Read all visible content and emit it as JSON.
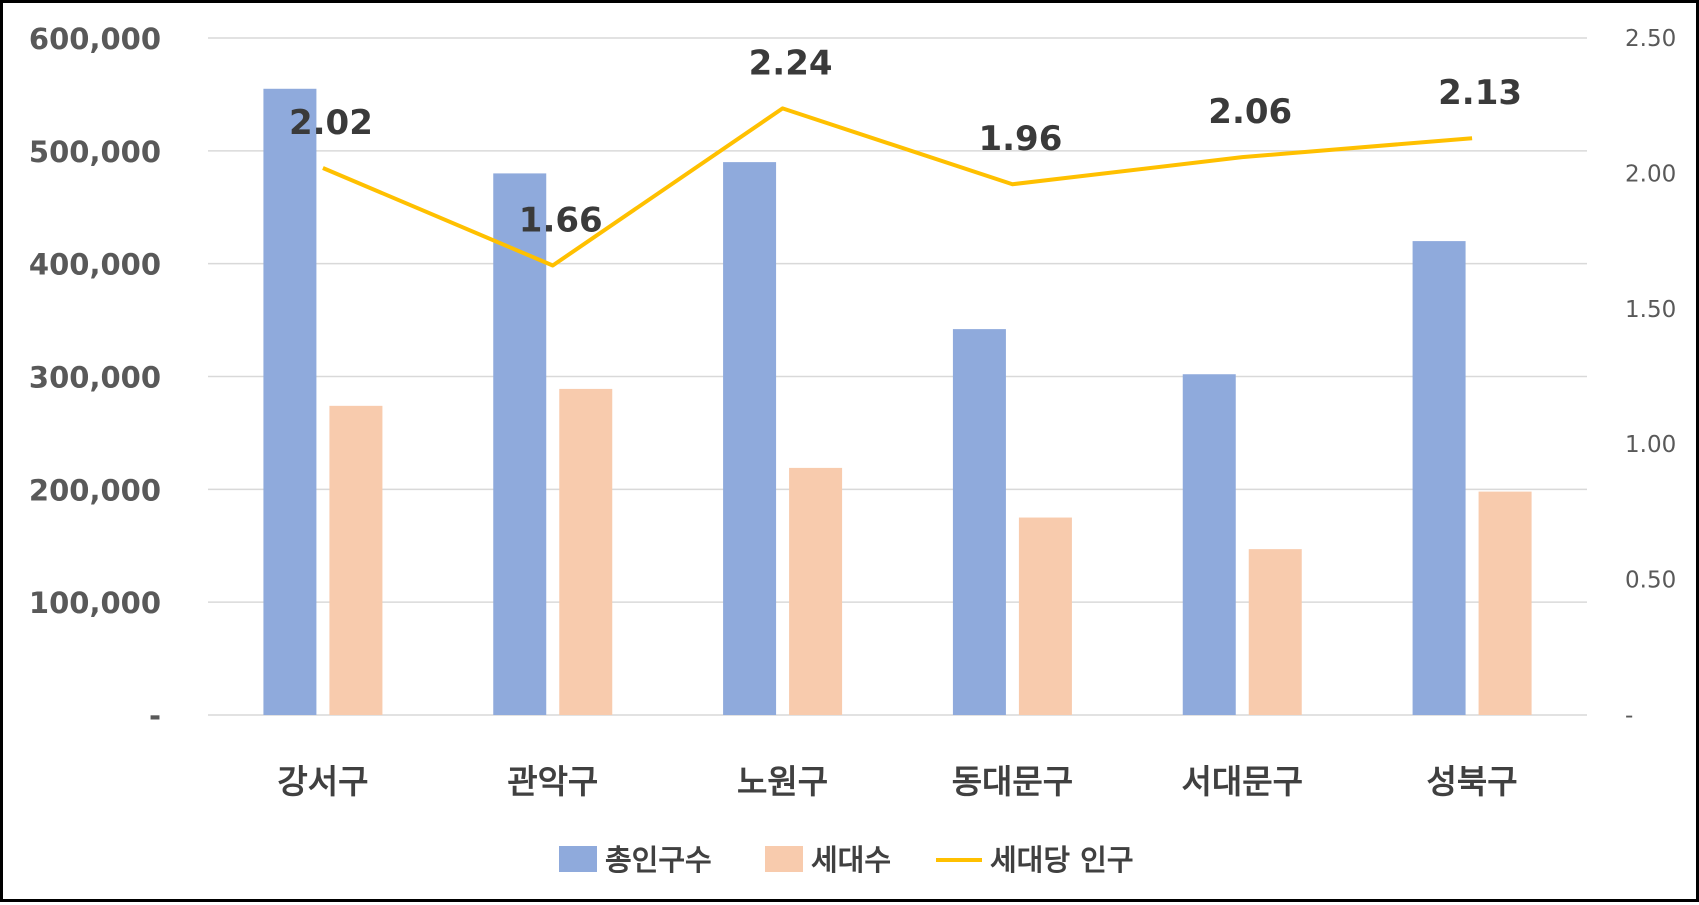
{
  "chart_data": {
    "type": "bar",
    "categories": [
      "강서구",
      "관악구",
      "노원구",
      "동대문구",
      "서대문구",
      "성북구"
    ],
    "series": [
      {
        "name": "총인구수",
        "type": "bar",
        "axis": "left",
        "color": "#8faadc",
        "values": [
          555000,
          480000,
          490000,
          342000,
          302000,
          420000
        ]
      },
      {
        "name": "세대수",
        "type": "bar",
        "axis": "left",
        "color": "#f8cbad",
        "values": [
          274000,
          289000,
          219000,
          175000,
          147000,
          198000
        ]
      },
      {
        "name": "세대당 인구",
        "type": "line",
        "axis": "right",
        "color": "#ffc000",
        "values": [
          2.02,
          1.66,
          2.24,
          1.96,
          2.06,
          2.13
        ],
        "data_labels": [
          "2.02",
          "1.66",
          "2.24",
          "1.96",
          "2.06",
          "2.13"
        ]
      }
    ],
    "y_left": {
      "ylim": [
        0,
        600000
      ],
      "tick_values": [
        0,
        100000,
        200000,
        300000,
        400000,
        500000,
        600000
      ],
      "tick_labels": [
        "-",
        "100,000",
        "200,000",
        "300,000",
        "400,000",
        "500,000",
        "600,000"
      ]
    },
    "y_right": {
      "ylim": [
        0,
        2.5
      ],
      "tick_values": [
        0,
        0.5,
        1.0,
        1.5,
        2.0,
        2.5
      ],
      "tick_labels": [
        "-",
        "0.50",
        "1.00",
        "1.50",
        "2.00",
        "2.50"
      ]
    },
    "grid": true,
    "legend_position": "bottom",
    "colors": {
      "gridline": "#d9d9d9",
      "axis_text": "#595959"
    }
  }
}
